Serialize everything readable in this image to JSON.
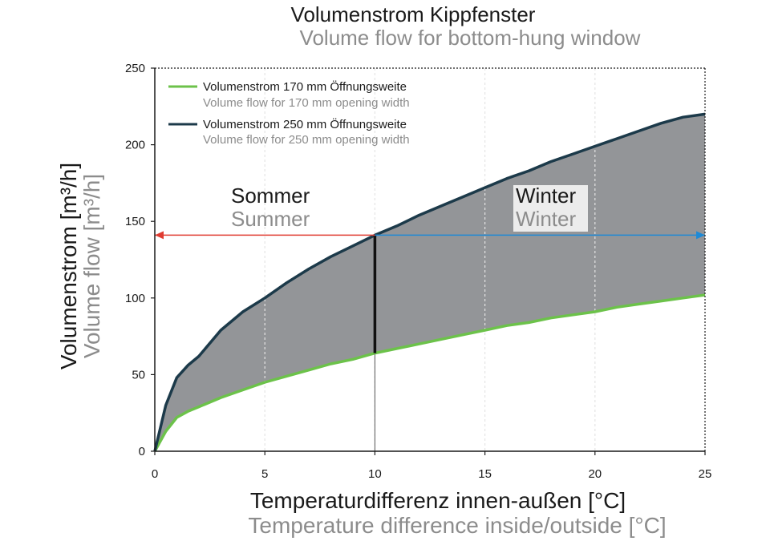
{
  "chart_data": {
    "type": "area",
    "title": "Volumenstrom Kippfenster",
    "subtitle": "Volume flow for bottom-hung window",
    "xlabel": "Temperaturdifferenz innen-außen [°C]",
    "xlabel_en": "Temperature difference inside/outside [°C]",
    "ylabel": "Volumenstrom [m³/h]",
    "ylabel_en": "Volume flow [m³/h]",
    "xlim": [
      0,
      25
    ],
    "ylim": [
      0,
      250
    ],
    "xticks": [
      "0",
      "5",
      "10",
      "15",
      "20",
      "25"
    ],
    "yticks": [
      "0",
      "50",
      "100",
      "150",
      "200",
      "250"
    ],
    "grid": "vertical dotted",
    "legend_position": "top-left",
    "series": [
      {
        "name": "Volumenstrom 170 mm Öffnungsweite",
        "name_en": "Volume flow for 170 mm opening width",
        "color": "#6cc24a",
        "x": [
          0,
          0.5,
          1,
          1.5,
          2,
          3,
          4,
          5,
          6,
          7,
          8,
          9,
          10,
          11,
          12,
          13,
          14,
          15,
          16,
          17,
          18,
          19,
          20,
          21,
          22,
          23,
          24,
          25
        ],
        "y": [
          0,
          13,
          22,
          26,
          29,
          35,
          40,
          45,
          49,
          53,
          57,
          60,
          64,
          67,
          70,
          73,
          76,
          79,
          82,
          84,
          87,
          89,
          91,
          94,
          96,
          98,
          100,
          102
        ]
      },
      {
        "name": "Volumenstrom 250 mm Öffnungsweite",
        "name_en": "Volume flow for 250 mm opening width",
        "color": "#1c3a4a",
        "x": [
          0,
          0.5,
          1,
          1.5,
          2,
          3,
          4,
          5,
          6,
          7,
          8,
          9,
          10,
          11,
          12,
          13,
          14,
          15,
          16,
          17,
          18,
          19,
          20,
          21,
          22,
          23,
          24,
          25
        ],
        "y": [
          0,
          30,
          48,
          56,
          62,
          79,
          91,
          100,
          110,
          119,
          127,
          134,
          141,
          147,
          154,
          160,
          166,
          172,
          178,
          183,
          189,
          194,
          199,
          204,
          209,
          214,
          218,
          220
        ]
      }
    ],
    "fill_between_color": "#939598",
    "divider_x": 10,
    "divider_y": 141,
    "summer_arrow": {
      "from_x": 10,
      "to_x": 0,
      "y": 141,
      "color": "#e03c31"
    },
    "winter_arrow": {
      "from_x": 10,
      "to_x": 25,
      "y": 141,
      "color": "#1e8ad6"
    },
    "zones": {
      "summer_de": "Sommer",
      "summer_en": "Summer",
      "winter_de": "Winter",
      "winter_en": "Winter"
    }
  }
}
